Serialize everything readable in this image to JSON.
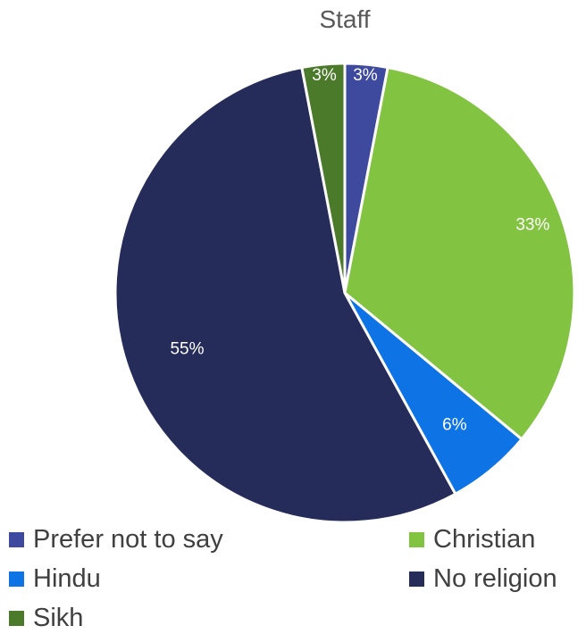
{
  "chart_data": {
    "type": "pie",
    "title": "Staff",
    "legend_position": "bottom",
    "slices": [
      {
        "name": "Prefer not to say",
        "value": 3,
        "label": "3%",
        "color": "#3e4a9e"
      },
      {
        "name": "Christian",
        "value": 33,
        "label": "33%",
        "color": "#82c341"
      },
      {
        "name": "Hindu",
        "value": 6,
        "label": "6%",
        "color": "#0e73e4"
      },
      {
        "name": "No religion",
        "value": 55,
        "label": "55%",
        "color": "#262c5a"
      },
      {
        "name": "Sikh",
        "value": 3,
        "label": "3%",
        "color": "#4b7a2a"
      }
    ]
  }
}
